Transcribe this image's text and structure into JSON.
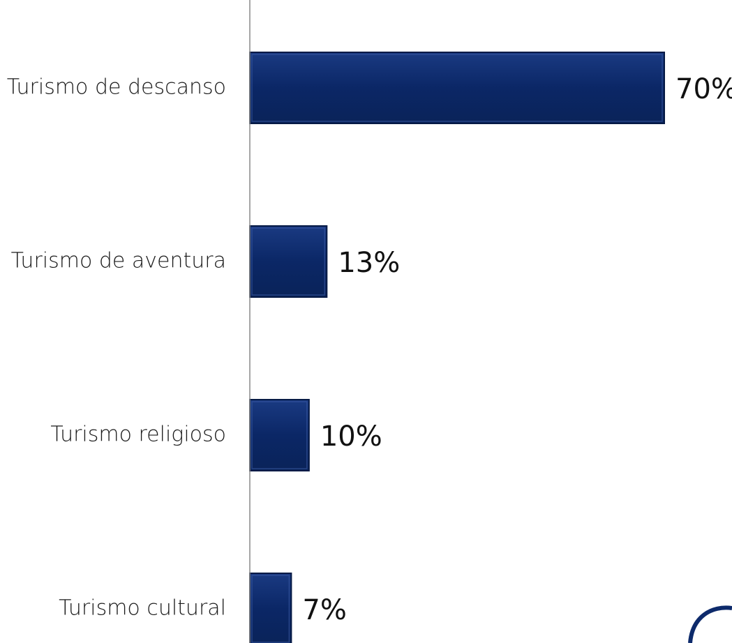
{
  "chart_data": {
    "type": "bar",
    "orientation": "horizontal",
    "categories": [
      "Turismo de descanso",
      "Turismo de aventura",
      "Turismo religioso",
      "Turismo cultural"
    ],
    "values": [
      70,
      13,
      10,
      7
    ],
    "value_labels": [
      "70%",
      "13%",
      "10%",
      "7%"
    ],
    "unit": "%",
    "xlim": [
      0,
      70
    ],
    "grid": false,
    "legend": "none",
    "bar_color": "#0d2a6b"
  }
}
